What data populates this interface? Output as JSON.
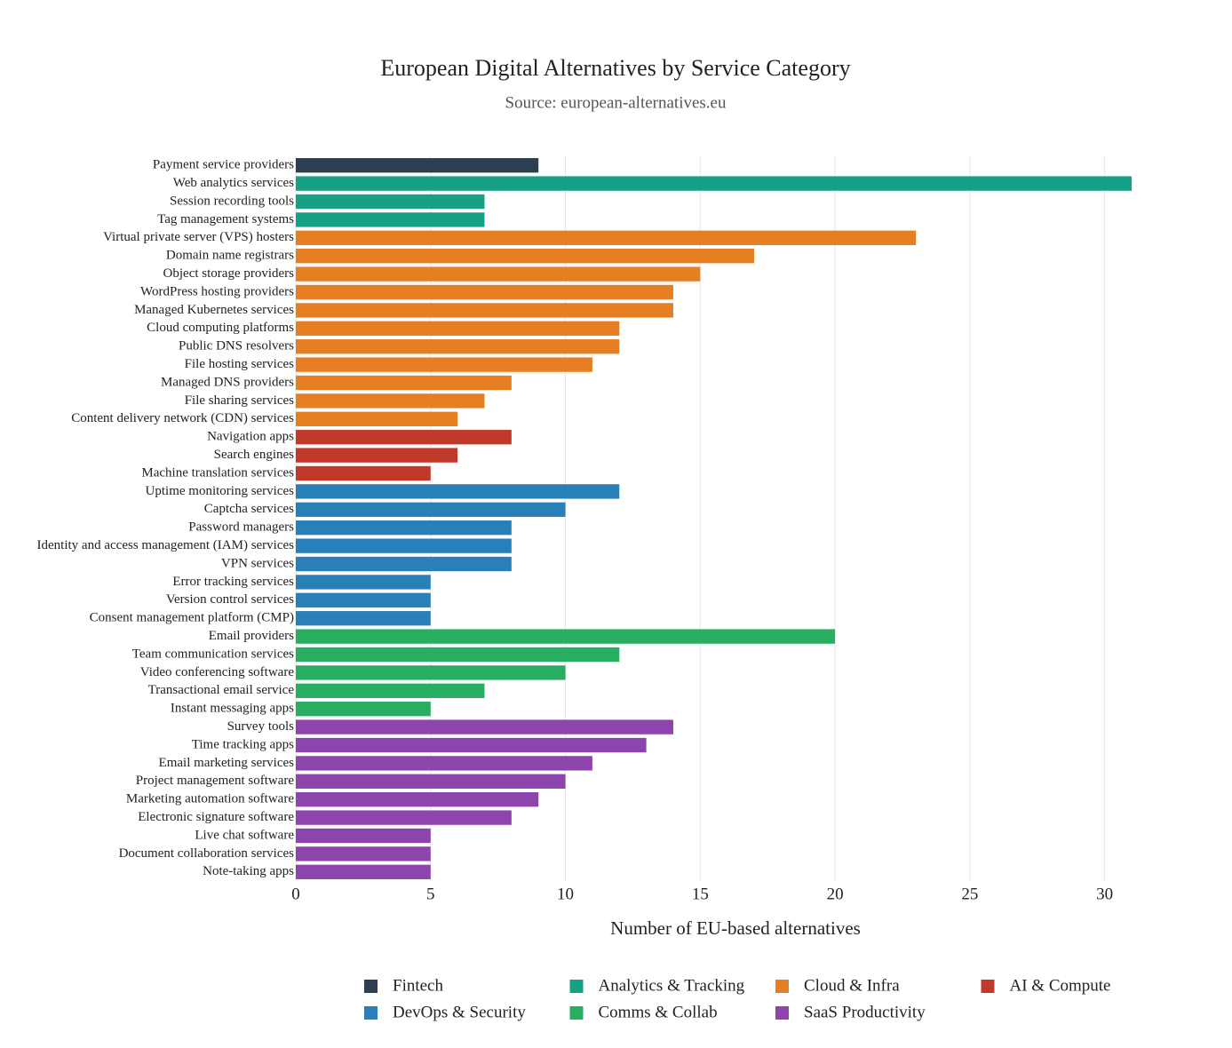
{
  "chart_data": {
    "type": "bar",
    "orientation": "horizontal",
    "title": "European Digital Alternatives by Service Category",
    "subtitle": "Source: european-alternatives.eu",
    "x_label": "Number of EU-based alternatives",
    "xlim": [
      0,
      31
    ],
    "xticks": [
      0,
      5,
      10,
      15,
      20,
      25,
      30
    ],
    "grid": true,
    "legend": "bottom",
    "series": [
      {
        "name": "Fintech",
        "color": "#2c3e50",
        "categories": [
          "Payment service providers"
        ],
        "values": [
          9
        ]
      },
      {
        "name": "Analytics & Tracking",
        "color": "#16a085",
        "categories": [
          "Web analytics services",
          "Session recording tools",
          "Tag management systems"
        ],
        "values": [
          31,
          7,
          7
        ]
      },
      {
        "name": "Cloud & Infra",
        "color": "#e67e22",
        "categories": [
          "Virtual private server (VPS) hosters",
          "Domain name registrars",
          "Object storage providers",
          "WordPress hosting providers",
          "Managed Kubernetes services",
          "Cloud computing platforms",
          "Public DNS resolvers",
          "File hosting services",
          "Managed DNS providers",
          "File sharing services",
          "Content delivery network (CDN) services"
        ],
        "values": [
          23,
          17,
          15,
          14,
          14,
          12,
          12,
          11,
          8,
          7,
          6
        ]
      },
      {
        "name": "AI & Compute",
        "color": "#c0392b",
        "categories": [
          "Navigation apps",
          "Search engines",
          "Machine translation services"
        ],
        "values": [
          8,
          6,
          5
        ]
      },
      {
        "name": "DevOps & Security",
        "color": "#2980b9",
        "categories": [
          "Uptime monitoring services",
          "Captcha services",
          "Password managers",
          "Identity and access management (IAM) services",
          "VPN services",
          "Error tracking services",
          "Version control services",
          "Consent management platform (CMP)"
        ],
        "values": [
          12,
          10,
          8,
          8,
          8,
          5,
          5,
          5
        ]
      },
      {
        "name": "Comms & Collab",
        "color": "#27ae60",
        "categories": [
          "Email providers",
          "Team communication services",
          "Video conferencing software",
          "Transactional email service",
          "Instant messaging apps"
        ],
        "values": [
          20,
          12,
          10,
          7,
          5
        ]
      },
      {
        "name": "SaaS Productivity",
        "color": "#8e44ad",
        "categories": [
          "Survey tools",
          "Time tracking apps",
          "Email marketing services",
          "Project management software",
          "Marketing automation software",
          "Electronic signature software",
          "Live chat software",
          "Document collaboration services",
          "Note-taking apps"
        ],
        "values": [
          14,
          13,
          11,
          10,
          9,
          8,
          5,
          5,
          5
        ]
      }
    ]
  }
}
